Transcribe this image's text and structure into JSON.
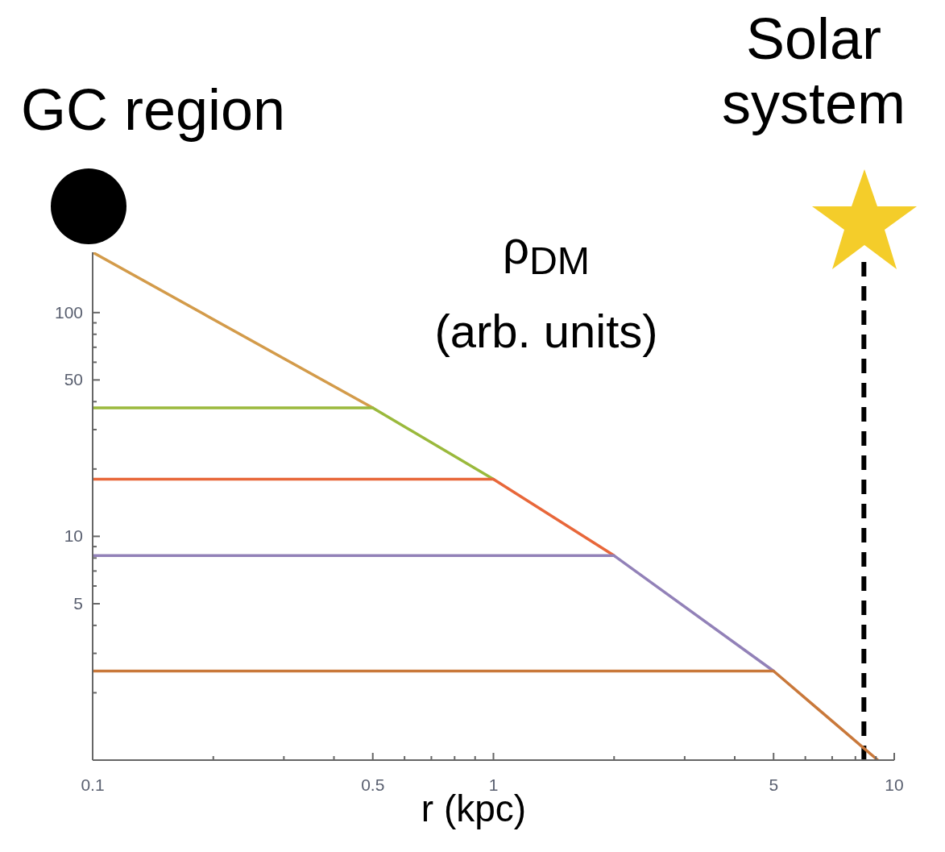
{
  "chart_data": {
    "type": "line",
    "xlabel": "r (kpc)",
    "ylabel": "ρ$_{DM}$\n(arb. units)",
    "annotations": [
      "GC region",
      "Solar system"
    ],
    "log": "xy",
    "xlim": [
      0.1,
      10
    ],
    "ylim": [
      1,
      186
    ],
    "xticks": [
      0.1,
      {
        "value": 0.2,
        "label": null
      },
      {
        "value": 0.3,
        "label": null
      },
      {
        "value": 0.4,
        "label": null
      },
      0.5,
      {
        "value": 0.6,
        "label": null
      },
      {
        "value": 0.7,
        "label": null
      },
      {
        "value": 0.8,
        "label": null
      },
      {
        "value": 0.9,
        "label": null
      },
      1,
      {
        "value": 2,
        "label": null
      },
      {
        "value": 3,
        "label": null
      },
      {
        "value": 4,
        "label": null
      },
      5,
      {
        "value": 6,
        "label": null
      },
      {
        "value": 7,
        "label": null
      },
      {
        "value": 8,
        "label": null
      },
      {
        "value": 9,
        "label": null
      },
      10
    ],
    "yticks": [
      {
        "value": 2,
        "label": null
      },
      {
        "value": 3,
        "label": null
      },
      {
        "value": 4,
        "label": null
      },
      5,
      {
        "value": 6,
        "label": null
      },
      {
        "value": 7,
        "label": null
      },
      {
        "value": 8,
        "label": null
      },
      {
        "value": 9,
        "label": null
      },
      10,
      {
        "value": 20,
        "label": null
      },
      {
        "value": 30,
        "label": null
      },
      {
        "value": 40,
        "label": null
      },
      50,
      {
        "value": 60,
        "label": null
      },
      {
        "value": 70,
        "label": null
      },
      {
        "value": 80,
        "label": null
      },
      {
        "value": 90,
        "label": null
      },
      100
    ],
    "series": [
      {
        "color": "#d39b4a",
        "x": [
          0.1,
          0.5
        ],
        "values": [
          186,
          37.5
        ]
      },
      {
        "color": "#9ab93c",
        "x": [
          0.1,
          0.5,
          1
        ],
        "values": [
          37.5,
          37.5,
          18
        ]
      },
      {
        "color": "#e8673a",
        "x": [
          0.1,
          1,
          2
        ],
        "values": [
          18,
          18,
          8.2
        ]
      },
      {
        "color": "#9281b8",
        "x": [
          0.1,
          2,
          5
        ],
        "values": [
          8.2,
          8.2,
          2.5
        ]
      },
      {
        "color": "#c9783a",
        "x": [
          0.1,
          5,
          9.1
        ],
        "values": [
          2.5,
          2.5,
          1
        ]
      }
    ],
    "ref_lines": [
      {
        "axis": "x",
        "value": 8.4,
        "color": "#000000",
        "line_style": "dashed"
      }
    ]
  }
}
